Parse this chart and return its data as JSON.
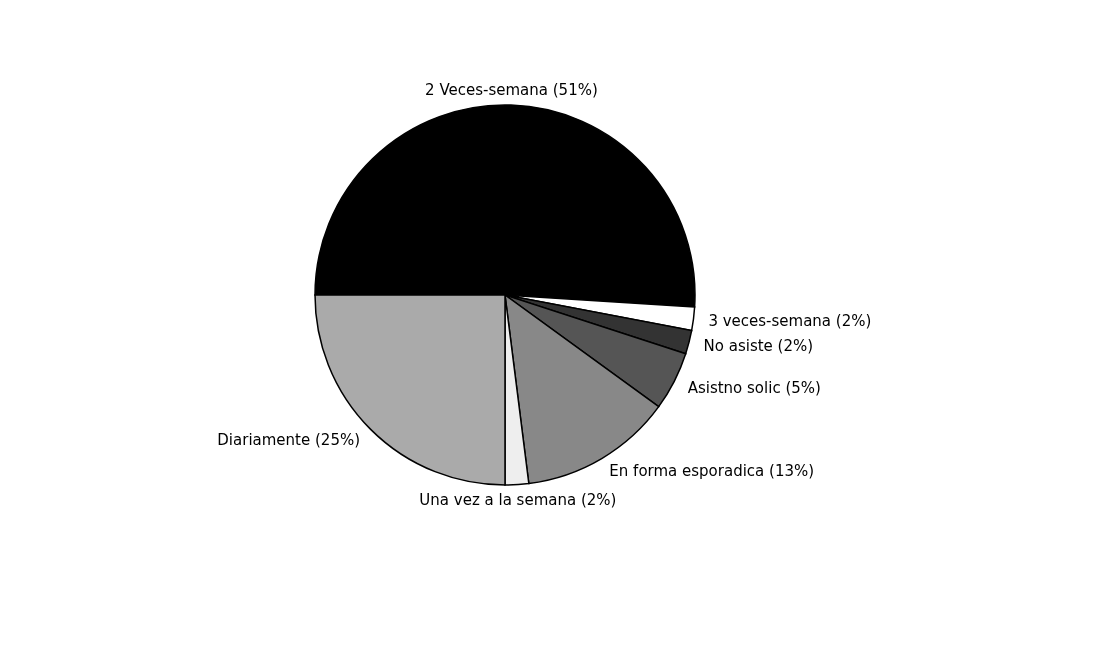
{
  "chart_data": {
    "type": "pie",
    "categories": [
      "2 Veces-semana (51%)",
      "3 veces-semana (2%)",
      "No asiste (2%)",
      "Asistno solic  (5%)",
      "En forma esporadica (13%)",
      "Una vez a la semana (2%)",
      "Diariamente (25%)"
    ],
    "values": [
      51,
      2,
      2,
      5,
      13,
      2,
      25
    ],
    "colors": [
      "#000000",
      "#ffffff",
      "#333333",
      "#555555",
      "#888888",
      "#eeeeee",
      "#aaaaaa"
    ],
    "legend": false
  }
}
